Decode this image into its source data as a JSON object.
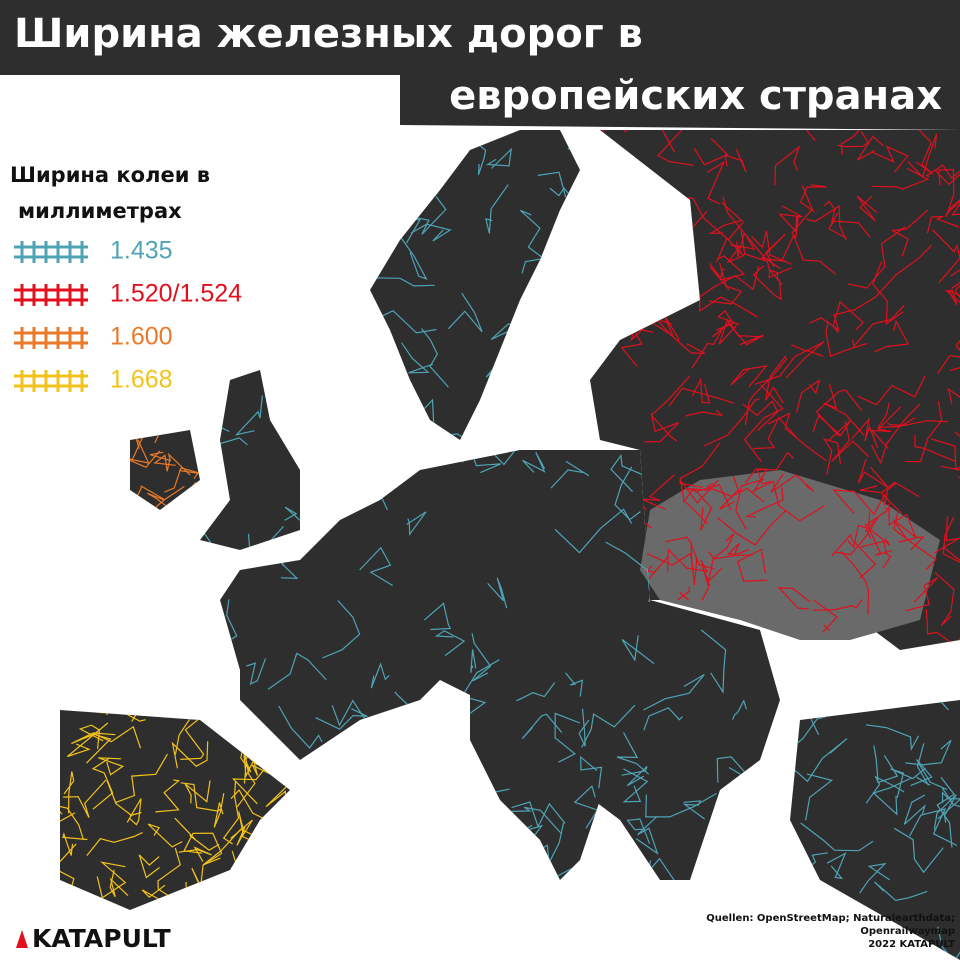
{
  "header": {
    "title_lines": [
      "Ширина железных дорог в",
      "европейских странах"
    ]
  },
  "legend": {
    "title_lines": [
      "Ширина колеи в",
      "миллиметрах"
    ],
    "items": [
      {
        "label": "1.435",
        "color": "#4fa3b5"
      },
      {
        "label": "1.520/1.524",
        "color": "#e0101e"
      },
      {
        "label": "1.600",
        "color": "#e87a2a"
      },
      {
        "label": "1.668",
        "color": "#f2c21a"
      }
    ]
  },
  "footer": {
    "sources_lines": [
      "Quellen: OpenStreetMap; Naturalearthdata;",
      "Openrailwaymap"
    ],
    "copyright": "2022 KATAPULT"
  },
  "logo": {
    "text": "KATAPULT"
  }
}
